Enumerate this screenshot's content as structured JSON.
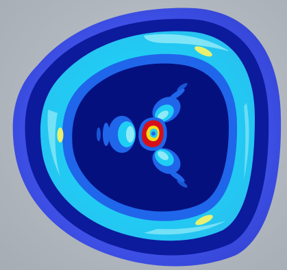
{
  "colors": {
    "background": "#a7adb5",
    "background_light": "#c0c6cc",
    "outer_rim": "#3f51e8",
    "dark_ring": "#0c1a9c",
    "cyan_band": "#20cdf4",
    "light_cyan": "#8feaf7",
    "blue_band": "#1f66ea",
    "deep_interior": "#05107f",
    "hotspot_yellow": "#e8f070",
    "core_red": "#d6101a",
    "core_yellow": "#f5dc1a"
  }
}
